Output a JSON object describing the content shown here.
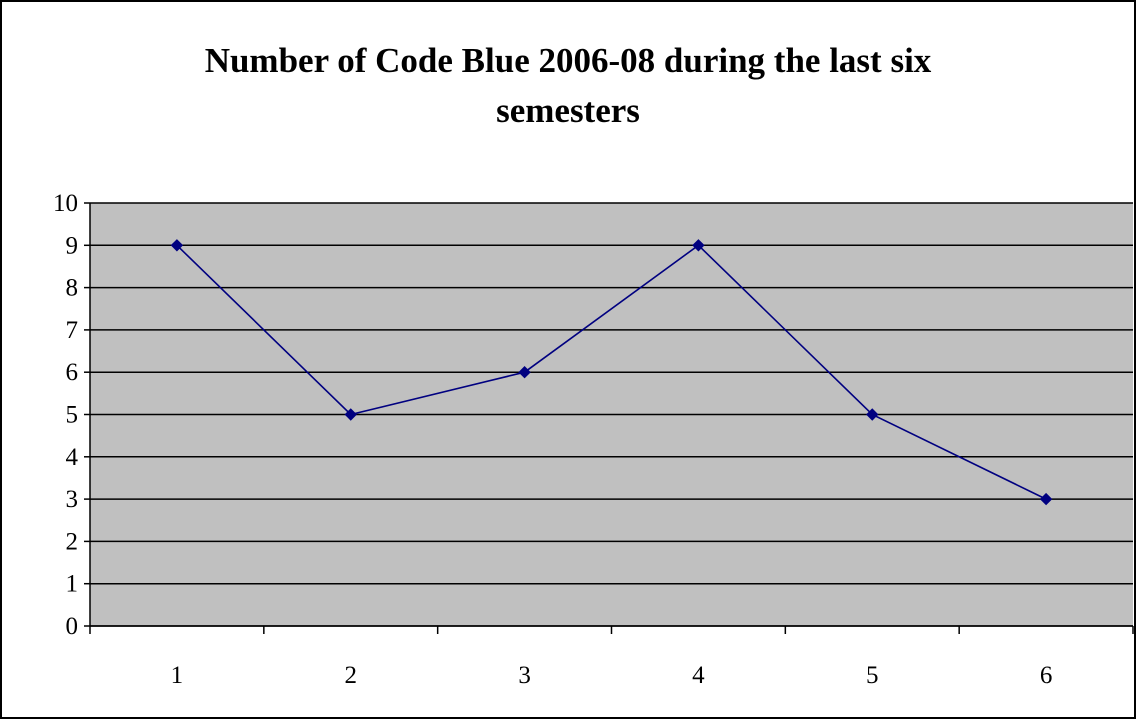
{
  "chart_data": {
    "type": "line",
    "title": "Number of Code Blue 2006-08 during the last six semesters",
    "xlabel": "",
    "ylabel": "",
    "categories": [
      "1",
      "2",
      "3",
      "4",
      "5",
      "6"
    ],
    "series": [
      {
        "values": [
          9,
          5,
          6,
          9,
          5,
          3
        ]
      }
    ],
    "ylim": [
      0,
      10
    ],
    "yticks": [
      "0",
      "1",
      "2",
      "3",
      "4",
      "5",
      "6",
      "7",
      "8",
      "9",
      "10"
    ],
    "grid": true,
    "legend": "none",
    "colors": {
      "plot_background": "#c0c0c0",
      "line": "#000080",
      "marker": "#000080",
      "gridline": "#000000"
    },
    "marker": "diamond"
  }
}
